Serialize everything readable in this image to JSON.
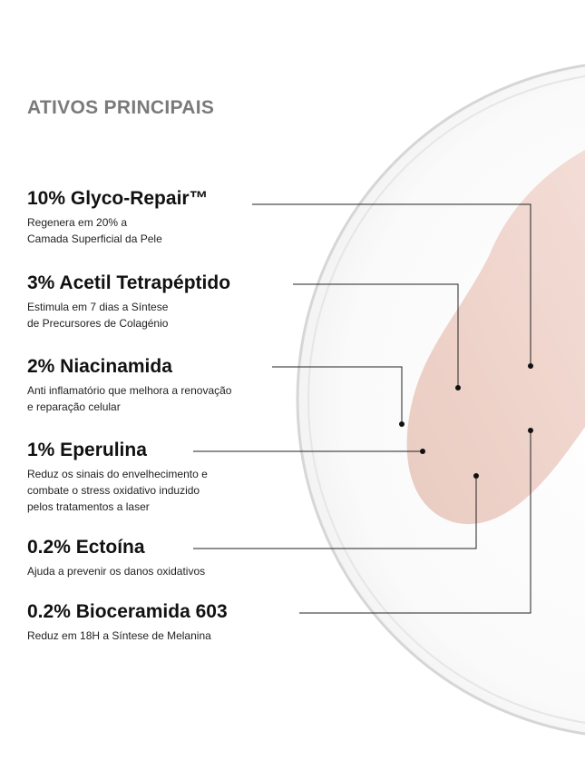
{
  "title": "ATIVOS PRINCIPAIS",
  "ingredients": [
    {
      "name": "10% Glyco-Repair™",
      "description": [
        "Regenera em 20% a",
        "Camada Superficial da Pele"
      ]
    },
    {
      "name": "3% Acetil Tetrapéptido",
      "description": [
        "Estimula em 7 dias a Síntese",
        "de Precursores de Colagénio"
      ]
    },
    {
      "name": "2% Niacinamida",
      "description": [
        "Anti inflamatório que melhora a renovação",
        "e reparação celular"
      ]
    },
    {
      "name": "1% Eperulina",
      "description": [
        "Reduz os sinais do envelhecimento e",
        "combate o stress oxidativo induzido",
        "pelos tratamentos a laser"
      ]
    },
    {
      "name": "0.2% Ectoína",
      "description": [
        "Ajuda a prevenir os danos oxidativos"
      ]
    },
    {
      "name": "0.2% Bioceramida 603",
      "description": [
        "Reduz em 18H a Síntese de Melanina"
      ]
    }
  ]
}
